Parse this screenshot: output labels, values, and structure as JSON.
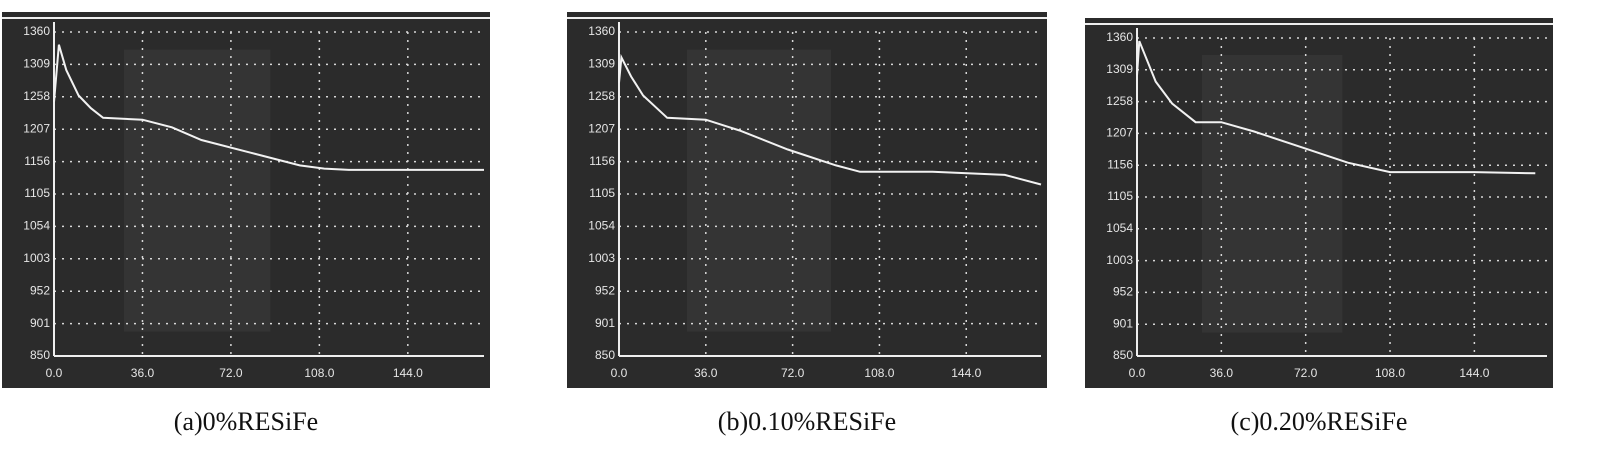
{
  "chart_data": [
    {
      "type": "line",
      "title": "(a)0%RESiFe",
      "color": "#f2f2f2",
      "grid": true,
      "x": [
        0,
        2,
        5,
        10,
        15,
        20,
        36,
        48,
        60,
        80,
        100,
        110,
        120,
        150,
        175
      ],
      "values": [
        1250,
        1340,
        1300,
        1260,
        1240,
        1225,
        1222,
        1210,
        1190,
        1170,
        1150,
        1145,
        1143,
        1143,
        1143
      ],
      "xlim": [
        0,
        175
      ],
      "ylim": [
        850,
        1360
      ],
      "xticks": [
        {
          "value": 0,
          "label": "0.0"
        },
        {
          "value": 36,
          "label": "36.0"
        },
        {
          "value": 72,
          "label": "72.0"
        },
        {
          "value": 108,
          "label": "108.0"
        },
        {
          "value": 144,
          "label": "144.0"
        }
      ],
      "yticks": [
        850,
        901,
        952,
        1003,
        1054,
        1105,
        1156,
        1207,
        1258,
        1309,
        1360
      ]
    },
    {
      "type": "line",
      "title": "(b)0.10%RESiFe",
      "color": "#f2f2f2",
      "grid": true,
      "x": [
        0,
        1,
        5,
        10,
        20,
        36,
        50,
        70,
        90,
        100,
        130,
        160,
        175
      ],
      "values": [
        1280,
        1320,
        1290,
        1260,
        1225,
        1222,
        1205,
        1175,
        1150,
        1140,
        1140,
        1135,
        1120
      ],
      "xlim": [
        0,
        175
      ],
      "ylim": [
        850,
        1360
      ],
      "xticks": [
        {
          "value": 0,
          "label": "0.0"
        },
        {
          "value": 36,
          "label": "36.0"
        },
        {
          "value": 72,
          "label": "72.0"
        },
        {
          "value": 108,
          "label": "108.0"
        },
        {
          "value": 144,
          "label": "144.0"
        }
      ],
      "yticks": [
        850,
        901,
        952,
        1003,
        1054,
        1105,
        1156,
        1207,
        1258,
        1309,
        1360
      ]
    },
    {
      "type": "line",
      "title": "(c)0.20%RESiFe",
      "color": "#f2f2f2",
      "grid": true,
      "x": [
        0,
        1,
        8,
        15,
        25,
        36,
        50,
        70,
        90,
        108,
        144,
        170
      ],
      "values": [
        1300,
        1355,
        1290,
        1255,
        1225,
        1225,
        1210,
        1185,
        1160,
        1145,
        1145,
        1143
      ],
      "xlim": [
        0,
        175
      ],
      "ylim": [
        850,
        1360
      ],
      "xticks": [
        {
          "value": 0,
          "label": "0.0"
        },
        {
          "value": 36,
          "label": "36.0"
        },
        {
          "value": 72,
          "label": "72.0"
        },
        {
          "value": 108,
          "label": "108.0"
        },
        {
          "value": 144,
          "label": "144.0"
        }
      ],
      "yticks": [
        850,
        901,
        952,
        1003,
        1054,
        1105,
        1156,
        1207,
        1258,
        1309,
        1360
      ]
    }
  ]
}
